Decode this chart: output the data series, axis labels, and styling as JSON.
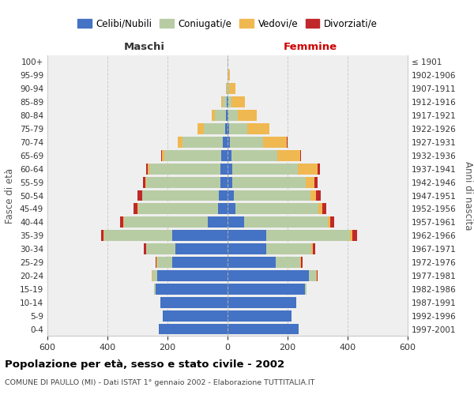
{
  "age_groups": [
    "0-4",
    "5-9",
    "10-14",
    "15-19",
    "20-24",
    "25-29",
    "30-34",
    "35-39",
    "40-44",
    "45-49",
    "50-54",
    "55-59",
    "60-64",
    "65-69",
    "70-74",
    "75-79",
    "80-84",
    "85-89",
    "90-94",
    "95-99",
    "100+"
  ],
  "birth_years": [
    "1997-2001",
    "1992-1996",
    "1987-1991",
    "1982-1986",
    "1977-1981",
    "1972-1976",
    "1967-1971",
    "1962-1966",
    "1957-1961",
    "1952-1956",
    "1947-1951",
    "1942-1946",
    "1937-1941",
    "1932-1936",
    "1927-1931",
    "1922-1926",
    "1917-1921",
    "1912-1916",
    "1907-1911",
    "1902-1906",
    "≤ 1901"
  ],
  "male_celibe": [
    230,
    215,
    225,
    240,
    235,
    185,
    175,
    185,
    65,
    32,
    28,
    25,
    25,
    20,
    15,
    8,
    5,
    2,
    0,
    0,
    0
  ],
  "male_coniugato": [
    0,
    0,
    0,
    5,
    15,
    50,
    95,
    225,
    280,
    265,
    255,
    245,
    235,
    190,
    135,
    72,
    38,
    15,
    3,
    1,
    0
  ],
  "male_vedovo": [
    0,
    0,
    0,
    0,
    2,
    2,
    2,
    2,
    2,
    2,
    2,
    3,
    5,
    8,
    15,
    20,
    10,
    5,
    1,
    0,
    0
  ],
  "male_divorziato": [
    0,
    0,
    0,
    0,
    0,
    3,
    8,
    10,
    12,
    15,
    15,
    8,
    5,
    2,
    2,
    0,
    0,
    0,
    0,
    0,
    0
  ],
  "female_nubile": [
    238,
    212,
    228,
    258,
    270,
    160,
    130,
    130,
    55,
    25,
    20,
    15,
    15,
    12,
    8,
    5,
    3,
    2,
    0,
    0,
    0
  ],
  "female_coniugata": [
    0,
    0,
    0,
    5,
    25,
    82,
    148,
    278,
    278,
    278,
    255,
    245,
    220,
    155,
    110,
    60,
    30,
    10,
    5,
    2,
    0
  ],
  "female_vedova": [
    0,
    0,
    0,
    0,
    2,
    3,
    5,
    8,
    10,
    12,
    20,
    30,
    65,
    75,
    80,
    75,
    65,
    45,
    20,
    5,
    1
  ],
  "female_divorziata": [
    0,
    0,
    0,
    0,
    2,
    5,
    10,
    15,
    12,
    15,
    15,
    10,
    8,
    3,
    2,
    0,
    0,
    0,
    0,
    0,
    0
  ],
  "color_celibe": "#4472c4",
  "color_coniugato": "#b8cca4",
  "color_vedovo": "#f0b850",
  "color_divorziato": "#c0282a",
  "xlim_min": -600,
  "xlim_max": 600,
  "xticks": [
    -600,
    -400,
    -200,
    0,
    200,
    400,
    600
  ],
  "xticklabels": [
    "600",
    "400",
    "200",
    "0",
    "200",
    "400",
    "600"
  ],
  "title": "Popolazione per età, sesso e stato civile - 2002",
  "subtitle": "COMUNE DI PAULLO (MI) - Dati ISTAT 1° gennaio 2002 - Elaborazione TUTTITALIA.IT",
  "ylabel_left": "Fasce di età",
  "ylabel_right": "Anni di nascita",
  "label_maschi": "Maschi",
  "label_femmine": "Femmine",
  "legend_labels": [
    "Celibi/Nubili",
    "Coniugati/e",
    "Vedovi/e",
    "Divorziati/e"
  ],
  "bg_color": "#ffffff",
  "plot_bg": "#efefef",
  "grid_color": "#cccccc"
}
